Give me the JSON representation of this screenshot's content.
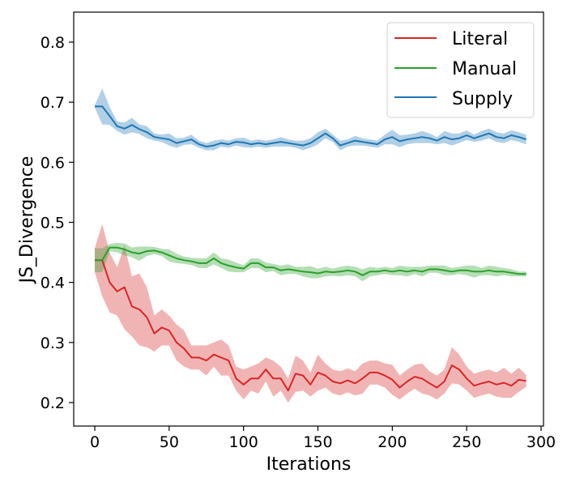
{
  "chart_data": {
    "type": "line",
    "title": "",
    "xlabel": "Iterations",
    "ylabel": "JS_Divergence",
    "xlim": [
      -15,
      305
    ],
    "ylim": [
      0.16,
      0.85
    ],
    "xticks": [
      0,
      50,
      100,
      150,
      200,
      250,
      300
    ],
    "xtick_labels": [
      "0",
      "50",
      "100",
      "150",
      "200",
      "250",
      "300"
    ],
    "yticks": [
      0.2,
      0.3,
      0.4,
      0.5,
      0.6,
      0.7,
      0.8
    ],
    "ytick_labels": [
      "0.2",
      "0.3",
      "0.4",
      "0.5",
      "0.6",
      "0.7",
      "0.8"
    ],
    "grid": false,
    "legend_position": "upper right",
    "shaded_band": "mean ± std",
    "x": [
      0,
      5,
      10,
      15,
      20,
      25,
      30,
      35,
      40,
      45,
      50,
      55,
      60,
      65,
      70,
      75,
      80,
      85,
      90,
      95,
      100,
      105,
      110,
      115,
      120,
      125,
      130,
      135,
      140,
      145,
      150,
      155,
      160,
      165,
      170,
      175,
      180,
      185,
      190,
      195,
      200,
      205,
      210,
      215,
      220,
      225,
      230,
      235,
      240,
      245,
      250,
      255,
      260,
      265,
      270,
      275,
      280,
      285,
      290
    ],
    "series": [
      {
        "name": "Literal",
        "color": "#d62728",
        "band_color": "#f0a3a4",
        "values": [
          0.437,
          0.437,
          0.4,
          0.385,
          0.392,
          0.36,
          0.355,
          0.342,
          0.315,
          0.325,
          0.32,
          0.3,
          0.29,
          0.275,
          0.275,
          0.27,
          0.28,
          0.275,
          0.27,
          0.24,
          0.23,
          0.24,
          0.24,
          0.255,
          0.24,
          0.24,
          0.22,
          0.248,
          0.245,
          0.23,
          0.25,
          0.245,
          0.235,
          0.232,
          0.237,
          0.232,
          0.24,
          0.25,
          0.25,
          0.245,
          0.238,
          0.225,
          0.235,
          0.243,
          0.24,
          0.232,
          0.225,
          0.235,
          0.262,
          0.255,
          0.24,
          0.228,
          0.232,
          0.235,
          0.23,
          0.233,
          0.228,
          0.238,
          0.236
        ],
        "band_halfwidth": [
          0.02,
          0.06,
          0.05,
          0.04,
          0.07,
          0.05,
          0.06,
          0.05,
          0.03,
          0.03,
          0.025,
          0.03,
          0.03,
          0.02,
          0.02,
          0.025,
          0.02,
          0.03,
          0.025,
          0.02,
          0.025,
          0.02,
          0.025,
          0.02,
          0.03,
          0.02,
          0.02,
          0.03,
          0.025,
          0.02,
          0.03,
          0.02,
          0.02,
          0.02,
          0.02,
          0.02,
          0.025,
          0.02,
          0.02,
          0.02,
          0.025,
          0.02,
          0.02,
          0.02,
          0.025,
          0.02,
          0.02,
          0.02,
          0.03,
          0.025,
          0.02,
          0.02,
          0.02,
          0.02,
          0.02,
          0.025,
          0.02,
          0.02,
          0.01
        ]
      },
      {
        "name": "Manual",
        "color": "#2ca02c",
        "band_color": "#a9d8a4",
        "values": [
          0.437,
          0.437,
          0.458,
          0.458,
          0.455,
          0.45,
          0.448,
          0.452,
          0.453,
          0.45,
          0.445,
          0.44,
          0.437,
          0.435,
          0.432,
          0.432,
          0.44,
          0.432,
          0.428,
          0.425,
          0.423,
          0.432,
          0.432,
          0.425,
          0.425,
          0.42,
          0.422,
          0.42,
          0.418,
          0.417,
          0.415,
          0.418,
          0.417,
          0.418,
          0.42,
          0.418,
          0.412,
          0.418,
          0.418,
          0.42,
          0.418,
          0.42,
          0.418,
          0.42,
          0.418,
          0.422,
          0.422,
          0.42,
          0.418,
          0.42,
          0.42,
          0.418,
          0.418,
          0.42,
          0.418,
          0.418,
          0.416,
          0.414,
          0.414
        ],
        "band_halfwidth": [
          0.02,
          0.02,
          0.006,
          0.008,
          0.01,
          0.008,
          0.012,
          0.008,
          0.006,
          0.006,
          0.01,
          0.008,
          0.006,
          0.006,
          0.008,
          0.008,
          0.01,
          0.008,
          0.01,
          0.008,
          0.006,
          0.008,
          0.008,
          0.008,
          0.006,
          0.008,
          0.008,
          0.006,
          0.008,
          0.01,
          0.008,
          0.008,
          0.006,
          0.008,
          0.008,
          0.008,
          0.01,
          0.008,
          0.006,
          0.006,
          0.006,
          0.008,
          0.008,
          0.006,
          0.008,
          0.006,
          0.006,
          0.008,
          0.006,
          0.006,
          0.008,
          0.01,
          0.006,
          0.008,
          0.008,
          0.006,
          0.006,
          0.004,
          0.004
        ]
      },
      {
        "name": "Supply",
        "color": "#1f77b4",
        "band_color": "#a6c8e3",
        "values": [
          0.693,
          0.693,
          0.677,
          0.66,
          0.656,
          0.662,
          0.655,
          0.65,
          0.642,
          0.64,
          0.638,
          0.632,
          0.635,
          0.638,
          0.63,
          0.626,
          0.628,
          0.632,
          0.63,
          0.634,
          0.633,
          0.63,
          0.632,
          0.63,
          0.632,
          0.634,
          0.632,
          0.63,
          0.628,
          0.632,
          0.64,
          0.648,
          0.64,
          0.628,
          0.632,
          0.636,
          0.634,
          0.632,
          0.63,
          0.638,
          0.642,
          0.635,
          0.638,
          0.64,
          0.642,
          0.64,
          0.636,
          0.642,
          0.638,
          0.64,
          0.645,
          0.64,
          0.644,
          0.648,
          0.642,
          0.64,
          0.645,
          0.642,
          0.638
        ],
        "band_halfwidth": [
          0.002,
          0.03,
          0.015,
          0.008,
          0.01,
          0.012,
          0.008,
          0.01,
          0.006,
          0.006,
          0.01,
          0.008,
          0.006,
          0.008,
          0.006,
          0.006,
          0.008,
          0.006,
          0.006,
          0.006,
          0.008,
          0.006,
          0.006,
          0.006,
          0.006,
          0.008,
          0.006,
          0.006,
          0.008,
          0.008,
          0.01,
          0.008,
          0.006,
          0.008,
          0.006,
          0.008,
          0.006,
          0.006,
          0.006,
          0.008,
          0.012,
          0.01,
          0.008,
          0.008,
          0.01,
          0.008,
          0.006,
          0.01,
          0.01,
          0.008,
          0.008,
          0.006,
          0.008,
          0.008,
          0.008,
          0.008,
          0.008,
          0.008,
          0.008
        ]
      }
    ]
  },
  "legend": {
    "items": [
      {
        "label": "Literal",
        "color": "#d62728"
      },
      {
        "label": "Manual",
        "color": "#2ca02c"
      },
      {
        "label": "Supply",
        "color": "#1f77b4"
      }
    ]
  }
}
